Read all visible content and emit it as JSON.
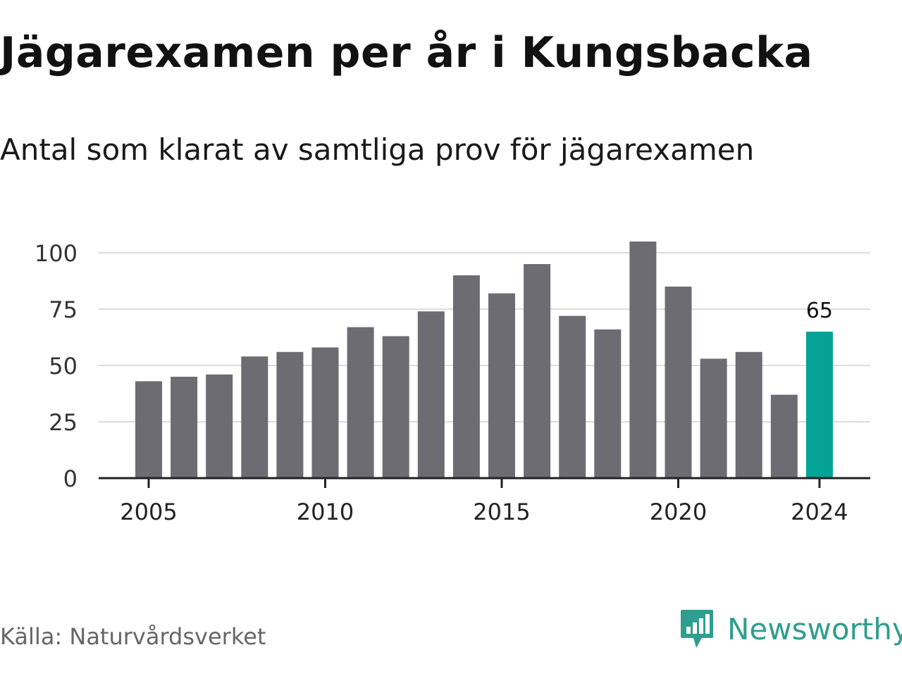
{
  "header": {
    "title": "Jägarexamen per år i Kungsbacka",
    "subtitle": "Antal som klarat av samtliga prov för jägarexamen"
  },
  "footer": {
    "source": "Källa: Naturvårdsverket",
    "brand_name": "Newsworthy",
    "brand_icon": "bar-chart-speech-bubble-icon"
  },
  "colors": {
    "bar": "#6d6c72",
    "highlight": "#05a396",
    "grid": "#dddddd",
    "axis": "#222222",
    "brand": "#2e9e8f"
  },
  "chart_data": {
    "type": "bar",
    "title": "Jägarexamen per år i Kungsbacka",
    "subtitle": "Antal som klarat av samtliga prov för jägarexamen",
    "xlabel": "",
    "ylabel": "",
    "categories": [
      2005,
      2006,
      2007,
      2008,
      2009,
      2010,
      2011,
      2012,
      2013,
      2014,
      2015,
      2016,
      2017,
      2018,
      2019,
      2020,
      2021,
      2022,
      2023,
      2024
    ],
    "values": [
      43,
      45,
      46,
      54,
      56,
      58,
      67,
      63,
      74,
      90,
      82,
      95,
      72,
      66,
      105,
      85,
      53,
      56,
      37,
      65
    ],
    "ylim": [
      0,
      105
    ],
    "yticks": [
      0,
      25,
      50,
      75,
      100
    ],
    "xticks": [
      2005,
      2010,
      2015,
      2020,
      2024
    ],
    "grid": true,
    "highlight": {
      "category": 2024,
      "label": "65"
    }
  }
}
